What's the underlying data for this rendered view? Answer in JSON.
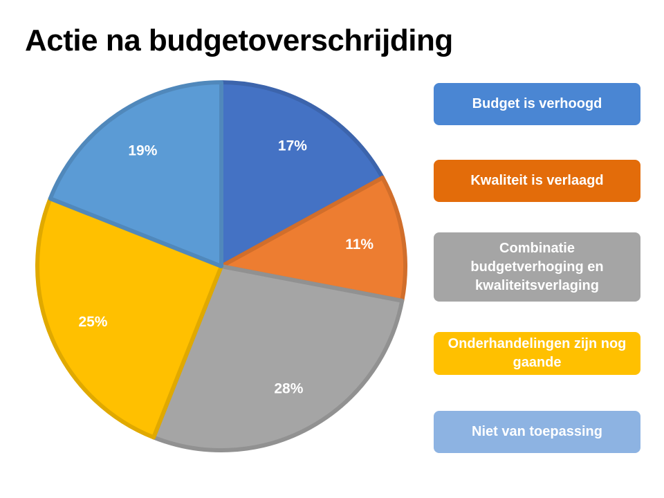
{
  "chart_data": {
    "type": "pie",
    "title": "Actie na budgetoverschrijding",
    "slices": [
      {
        "name": "Budget is verhoogd",
        "value": 17,
        "label": "17%",
        "color": "#4472C4"
      },
      {
        "name": "Kwaliteit is verlaagd",
        "value": 11,
        "label": "11%",
        "color": "#ED7D31"
      },
      {
        "name": "Combinatie budgetverhoging en kwaliteitsverlaging",
        "value": 28,
        "label": "28%",
        "color": "#A5A5A5"
      },
      {
        "name": "Onderhandelingen zijn nog gaande",
        "value": 25,
        "label": "25%",
        "color": "#FFC000"
      },
      {
        "name": "Niet van toepassing",
        "value": 19,
        "label": "19%",
        "color": "#5B9BD5"
      }
    ],
    "legend_placement": "right",
    "legend_colors": [
      "#4A86D3",
      "#E36C0A",
      "#A5A5A5",
      "#FFC000",
      "#8DB3E2"
    ]
  }
}
